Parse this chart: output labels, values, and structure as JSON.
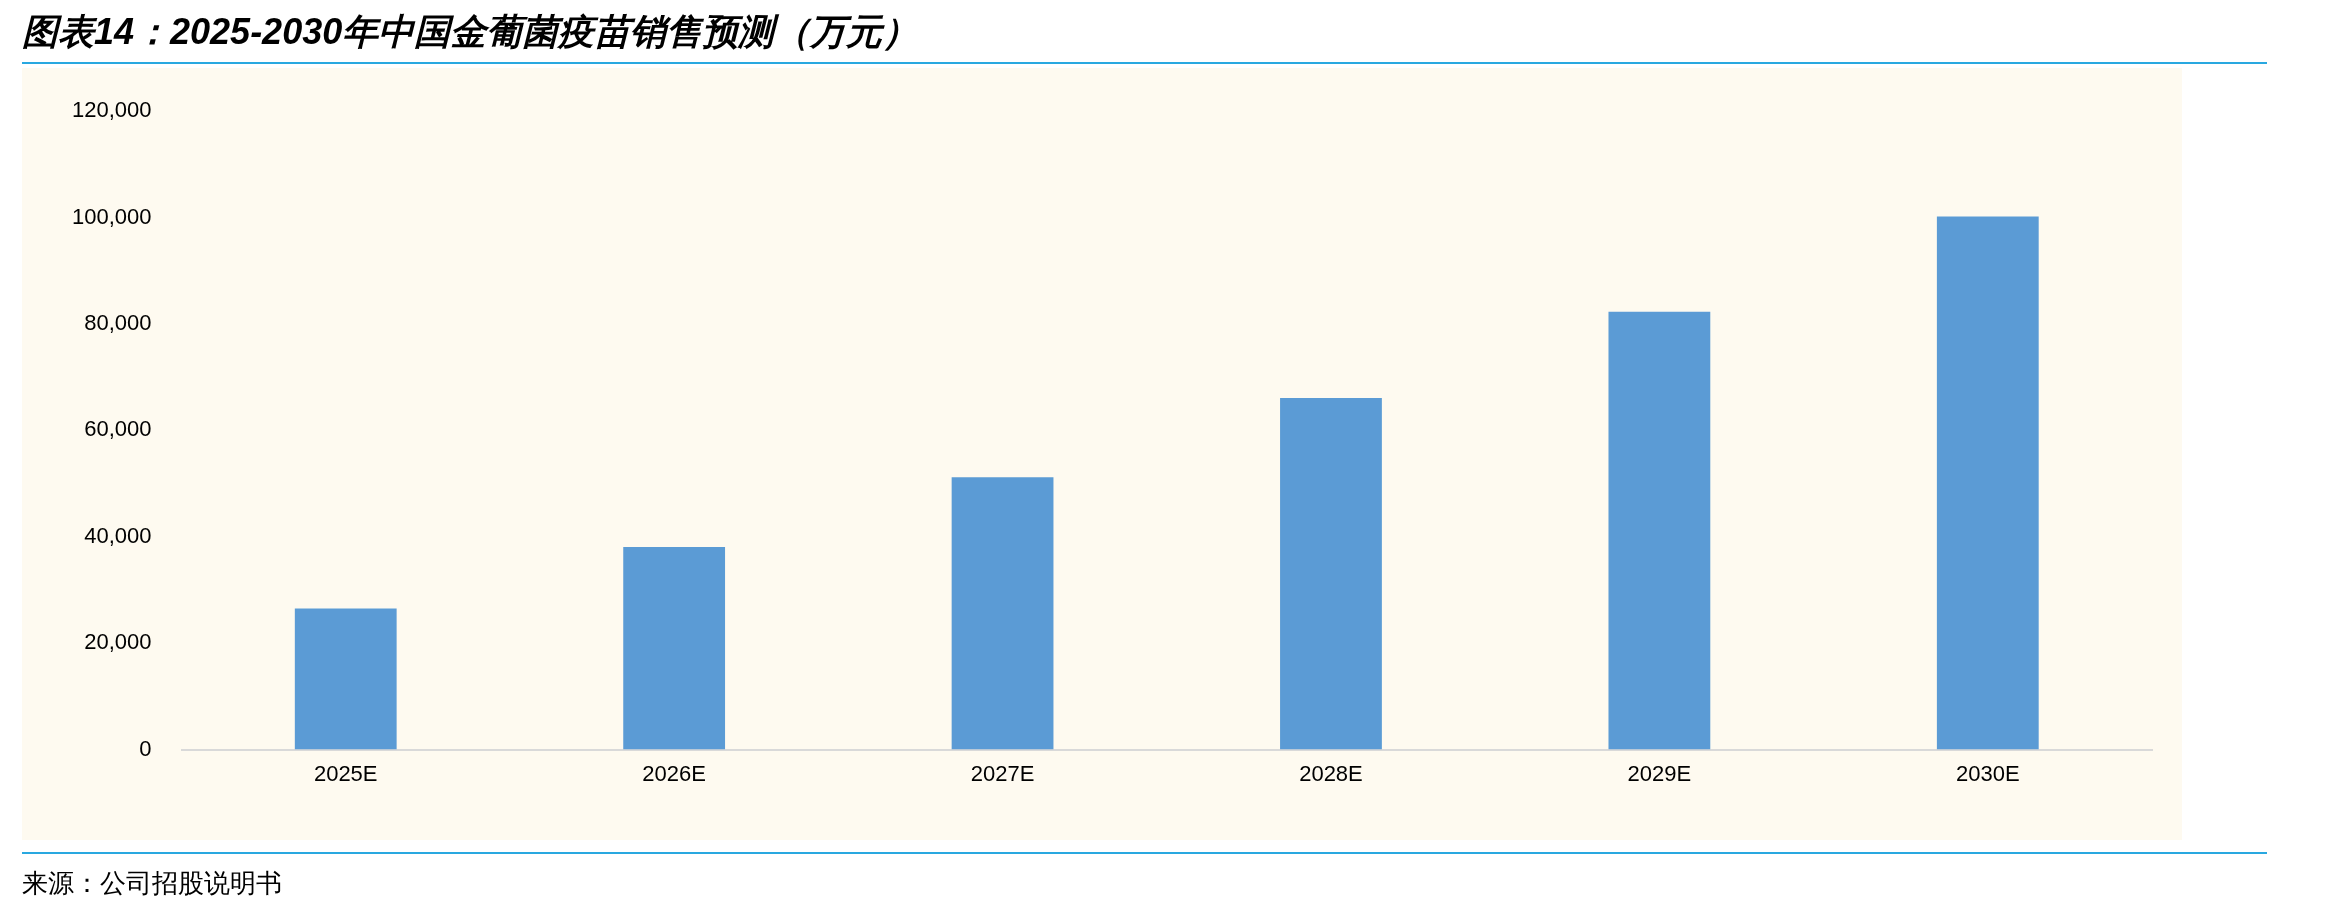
{
  "chart_data": {
    "type": "bar",
    "title": "图表14：2025-2030年中国金葡菌疫苗销售预测（万元）",
    "categories": [
      "2025E",
      "2026E",
      "2027E",
      "2028E",
      "2029E",
      "2030E"
    ],
    "values": [
      26500,
      38100,
      51200,
      66100,
      82300,
      100200
    ],
    "color": "#5b9bd5",
    "ylim": [
      0,
      120000
    ],
    "yticks": [
      {
        "value": 0,
        "label": "0"
      },
      {
        "value": 20000,
        "label": "20,000"
      },
      {
        "value": 40000,
        "label": "40,000"
      },
      {
        "value": 60000,
        "label": "60,000"
      },
      {
        "value": 80000,
        "label": "80,000"
      },
      {
        "value": 100000,
        "label": "100,000"
      },
      {
        "value": 120000,
        "label": "120,000"
      }
    ],
    "grid": false,
    "legend": false,
    "annotations": [
      "来源：公司招股说明书"
    ]
  }
}
